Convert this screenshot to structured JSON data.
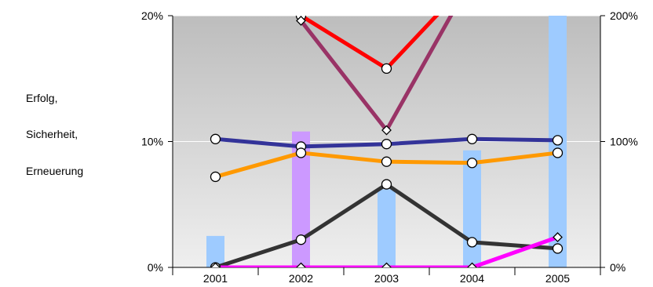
{
  "side_labels": [
    "Erfolg,",
    "Sicherheit,",
    "Erneuerung"
  ],
  "chart_data": {
    "type": "line",
    "categories": [
      "2001",
      "2002",
      "2003",
      "2004",
      "2005"
    ],
    "y_left": {
      "ticks": [
        "0%",
        "10%",
        "20%"
      ],
      "range": [
        0,
        20
      ]
    },
    "y_right": {
      "ticks": [
        "0%",
        "100%",
        "200%"
      ],
      "range": [
        0,
        200
      ]
    },
    "grid": true,
    "background": "gradient gray",
    "bars": [
      {
        "color": "#9ecbff",
        "axis": "left",
        "values": [
          2.5,
          null,
          6.2,
          9.3,
          20.5
        ]
      },
      {
        "color": "#cc99ff",
        "axis": "left",
        "values": [
          null,
          10.8,
          null,
          null,
          null
        ]
      }
    ],
    "series": [
      {
        "color": "#ff0000",
        "marker": "circle",
        "axis": "left",
        "values": [
          null,
          20.0,
          15.8,
          23.0,
          null
        ]
      },
      {
        "color": "#993366",
        "marker": "diamond",
        "axis": "left",
        "values": [
          null,
          19.6,
          10.9,
          23.0,
          null
        ]
      },
      {
        "color": "#333399",
        "marker": "circle",
        "axis": "left",
        "values": [
          10.2,
          9.6,
          9.8,
          10.2,
          10.1
        ]
      },
      {
        "color": "#ff9900",
        "marker": "circle",
        "axis": "left",
        "values": [
          7.2,
          9.1,
          8.4,
          8.3,
          9.1
        ]
      },
      {
        "color": "#333333",
        "marker": "circle",
        "axis": "left",
        "values": [
          0.0,
          2.2,
          6.6,
          2.0,
          1.5
        ]
      },
      {
        "color": "#ff00ff",
        "marker": "diamond",
        "axis": "left",
        "values": [
          0.0,
          0.0,
          0.0,
          0.0,
          2.4
        ]
      }
    ]
  }
}
